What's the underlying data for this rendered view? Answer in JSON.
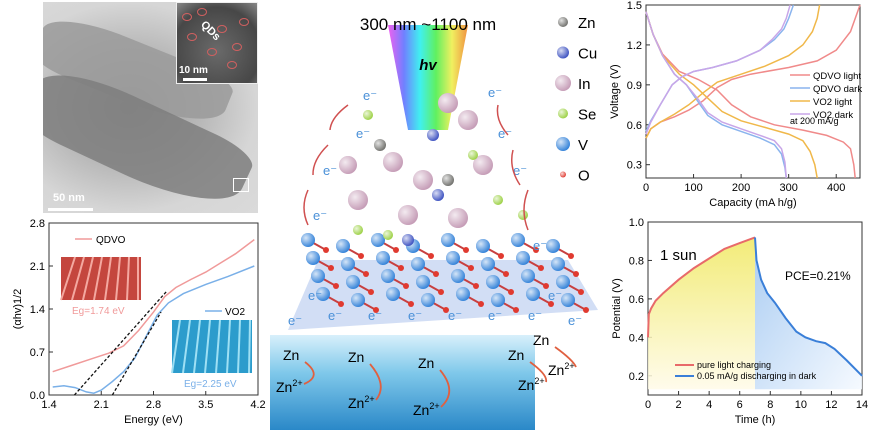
{
  "tem": {
    "inset_label": "QDs",
    "inset_scale": "10 nm",
    "scale": "50 nm"
  },
  "schematic": {
    "wavelength_label": "300 nm ~1100 nm",
    "photon_label": "hv",
    "electron_label": "e⁻",
    "zn_label": "Zn",
    "zn_ion_label": "Zn",
    "zn_ion_charge": "2+",
    "legend": [
      {
        "label": "Zn",
        "color": "#6e6e6a"
      },
      {
        "label": "Cu",
        "color": "#3a4fc0"
      },
      {
        "label": "In",
        "color": "#c49ab5"
      },
      {
        "label": "Se",
        "color": "#9ad040"
      },
      {
        "label": "V",
        "color": "#2e7fd8"
      },
      {
        "label": "O",
        "color": "#e03a30"
      }
    ]
  },
  "chart_data": [
    {
      "type": "line",
      "id": "bandgap",
      "xlabel": "Energy (eV)",
      "ylabel": "(αhv)1/2",
      "xlim": [
        1.4,
        4.2
      ],
      "ylim": [
        0,
        2.8
      ],
      "xticks": [
        1.4,
        2.1,
        2.8,
        3.5,
        4.2
      ],
      "yticks": [
        0.0,
        0.7,
        1.4,
        2.1,
        2.8
      ],
      "series": [
        {
          "name": "QDVO",
          "color": "#f09a9a",
          "eg_label": "Eg=1.74 eV",
          "x": [
            1.45,
            1.7,
            2.0,
            2.2,
            2.4,
            2.6,
            2.8,
            2.95,
            3.1,
            3.3,
            3.5,
            3.7,
            3.9,
            4.15
          ],
          "y": [
            0.38,
            0.48,
            0.6,
            0.68,
            0.8,
            1.05,
            1.35,
            1.6,
            1.75,
            1.88,
            2.0,
            2.15,
            2.3,
            2.53
          ]
        },
        {
          "name": "VO2",
          "color": "#7ab0e8",
          "eg_label": "Eg=2.25 eV",
          "x": [
            1.45,
            1.6,
            1.75,
            1.9,
            2.0,
            2.1,
            2.25,
            2.4,
            2.55,
            2.7,
            2.85,
            3.0,
            3.2,
            3.5,
            3.8,
            4.15
          ],
          "y": [
            0.13,
            0.15,
            0.12,
            0.05,
            0.03,
            0.08,
            0.22,
            0.38,
            0.6,
            0.95,
            1.3,
            1.5,
            1.65,
            1.8,
            1.93,
            2.1
          ]
        }
      ],
      "tangents": [
        {
          "x": [
            1.74,
            2.97
          ],
          "y": [
            0,
            1.68
          ]
        },
        {
          "x": [
            2.25,
            2.9
          ],
          "y": [
            0,
            1.35
          ]
        }
      ]
    },
    {
      "type": "line",
      "id": "gcd",
      "xlabel": "Capacity (mA h/g)",
      "ylabel": "Voltage (V)",
      "xlim": [
        0,
        450
      ],
      "ylim": [
        0.2,
        1.5
      ],
      "xticks": [
        0,
        100,
        200,
        300,
        400
      ],
      "yticks": [
        0.3,
        0.6,
        0.9,
        1.2,
        1.5
      ],
      "annotation": "at 200 mA/g",
      "series": [
        {
          "name": "QDVO light",
          "color": "#f08a8a",
          "charge": {
            "x": [
              0,
              10,
              30,
              60,
              90,
              120,
              150,
              180,
              220,
              300,
              360,
              400,
              430,
              450
            ],
            "y": [
              0.5,
              0.57,
              0.62,
              0.66,
              0.71,
              0.78,
              0.88,
              0.94,
              0.98,
              1.03,
              1.08,
              1.16,
              1.3,
              1.5
            ]
          },
          "discharge": {
            "x": [
              0,
              15,
              35,
              70,
              110,
              150,
              180,
              220,
              270,
              330,
              380,
              415,
              430,
              437,
              440
            ],
            "y": [
              1.45,
              1.28,
              1.13,
              1.0,
              0.94,
              0.86,
              0.75,
              0.66,
              0.6,
              0.56,
              0.52,
              0.47,
              0.42,
              0.3,
              0.2
            ]
          }
        },
        {
          "name": "QDVO dark",
          "color": "#8ab4ee",
          "charge": {
            "x": [
              0,
              10,
              30,
              55,
              75,
              100,
              140,
              190,
              240,
              270,
              290,
              300,
              310
            ],
            "y": [
              0.55,
              0.63,
              0.75,
              0.9,
              0.96,
              1.0,
              1.03,
              1.08,
              1.16,
              1.24,
              1.32,
              1.4,
              1.5
            ]
          },
          "discharge": {
            "x": [
              0,
              15,
              35,
              60,
              85,
              110,
              130,
              160,
              200,
              240,
              270,
              285,
              292,
              295
            ],
            "y": [
              1.45,
              1.28,
              1.12,
              0.98,
              0.9,
              0.77,
              0.67,
              0.6,
              0.55,
              0.5,
              0.45,
              0.38,
              0.28,
              0.2
            ]
          }
        },
        {
          "name": "VO2 light",
          "color": "#f0b84a",
          "charge": {
            "x": [
              0,
              10,
              30,
              60,
              90,
              120,
              150,
              200,
              250,
              300,
              330,
              350,
              360,
              365
            ],
            "y": [
              0.5,
              0.57,
              0.62,
              0.68,
              0.75,
              0.84,
              0.92,
              0.98,
              1.04,
              1.12,
              1.2,
              1.3,
              1.4,
              1.5
            ]
          },
          "discharge": {
            "x": [
              0,
              15,
              35,
              70,
              100,
              130,
              160,
              200,
              250,
              300,
              330,
              345,
              355,
              360
            ],
            "y": [
              1.45,
              1.28,
              1.12,
              0.98,
              0.9,
              0.8,
              0.7,
              0.63,
              0.58,
              0.53,
              0.48,
              0.4,
              0.3,
              0.2
            ]
          }
        },
        {
          "name": "VO2 dark",
          "color": "#c8a6e8",
          "charge": {
            "x": [
              0,
              10,
              30,
              55,
              75,
              100,
              140,
              190,
              240,
              265,
              285,
              295,
              303
            ],
            "y": [
              0.53,
              0.62,
              0.75,
              0.9,
              0.96,
              1.0,
              1.03,
              1.08,
              1.16,
              1.24,
              1.32,
              1.4,
              1.5
            ]
          },
          "discharge": {
            "x": [
              0,
              15,
              35,
              60,
              85,
              110,
              130,
              160,
              200,
              240,
              270,
              285,
              292,
              295
            ],
            "y": [
              1.45,
              1.28,
              1.12,
              0.98,
              0.9,
              0.79,
              0.69,
              0.62,
              0.57,
              0.52,
              0.48,
              0.42,
              0.32,
              0.2
            ]
          }
        }
      ]
    },
    {
      "type": "line",
      "id": "photocharge",
      "xlabel": "Time (h)",
      "ylabel": "Potential (V)",
      "xlim": [
        0,
        14
      ],
      "ylim": [
        0.1,
        1.0
      ],
      "xticks": [
        0,
        2,
        4,
        6,
        8,
        10,
        12,
        14
      ],
      "yticks": [
        0.2,
        0.4,
        0.6,
        0.8,
        1.0
      ],
      "annotations": [
        "1 sun",
        "PCE=0.21%"
      ],
      "series": [
        {
          "name": "pure light charging",
          "color": "#e86a6a",
          "x": [
            0,
            0.05,
            0.2,
            0.5,
            1,
            2,
            3,
            4,
            5,
            6,
            7
          ],
          "y": [
            0.4,
            0.52,
            0.55,
            0.59,
            0.63,
            0.7,
            0.76,
            0.81,
            0.86,
            0.89,
            0.92
          ]
        },
        {
          "name": "0.05 mA/g discharging in dark",
          "color": "#3a7fd8",
          "x": [
            7,
            7.1,
            7.4,
            7.8,
            8.3,
            9,
            9.7,
            10.3,
            11,
            11.6,
            12.2,
            13,
            14
          ],
          "y": [
            0.92,
            0.8,
            0.7,
            0.63,
            0.58,
            0.5,
            0.43,
            0.4,
            0.38,
            0.37,
            0.34,
            0.28,
            0.2
          ]
        }
      ]
    }
  ]
}
